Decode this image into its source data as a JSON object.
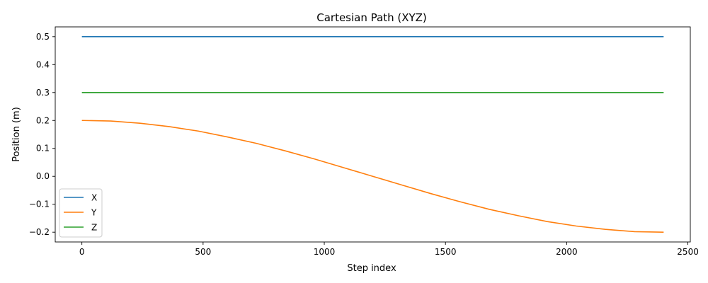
{
  "chart_data": {
    "type": "line",
    "title": "Cartesian Path (XYZ)",
    "xlabel": "Step index",
    "ylabel": "Position (m)",
    "xlim": [
      -110,
      2510
    ],
    "ylim": [
      -0.235,
      0.535
    ],
    "xticks": [
      0,
      500,
      1000,
      1500,
      2000,
      2500
    ],
    "yticks": [
      -0.2,
      -0.1,
      0.0,
      0.1,
      0.2,
      0.3,
      0.4,
      0.5
    ],
    "xtick_labels": [
      "0",
      "500",
      "1000",
      "1500",
      "2000",
      "2500"
    ],
    "ytick_labels": [
      "−0.2",
      "−0.1",
      "0.0",
      "0.1",
      "0.2",
      "0.3",
      "0.4",
      "0.5"
    ],
    "grid": false,
    "legend_position": "lower-left",
    "series": [
      {
        "name": "X",
        "color": "#1f77b4",
        "x": [
          0,
          2400
        ],
        "y": [
          0.5,
          0.5
        ]
      },
      {
        "name": "Y",
        "color": "#ff7f0e",
        "x": [
          0,
          120,
          240,
          360,
          480,
          600,
          720,
          840,
          960,
          1080,
          1200,
          1320,
          1440,
          1560,
          1680,
          1800,
          1920,
          2040,
          2160,
          2280,
          2400
        ],
        "y": [
          0.2,
          0.198,
          0.19,
          0.178,
          0.162,
          0.141,
          0.118,
          0.091,
          0.062,
          0.031,
          0.0,
          -0.031,
          -0.062,
          -0.091,
          -0.118,
          -0.141,
          -0.162,
          -0.178,
          -0.19,
          -0.198,
          -0.2
        ]
      },
      {
        "name": "Z",
        "color": "#2ca02c",
        "x": [
          0,
          2400
        ],
        "y": [
          0.3,
          0.3
        ]
      }
    ]
  }
}
